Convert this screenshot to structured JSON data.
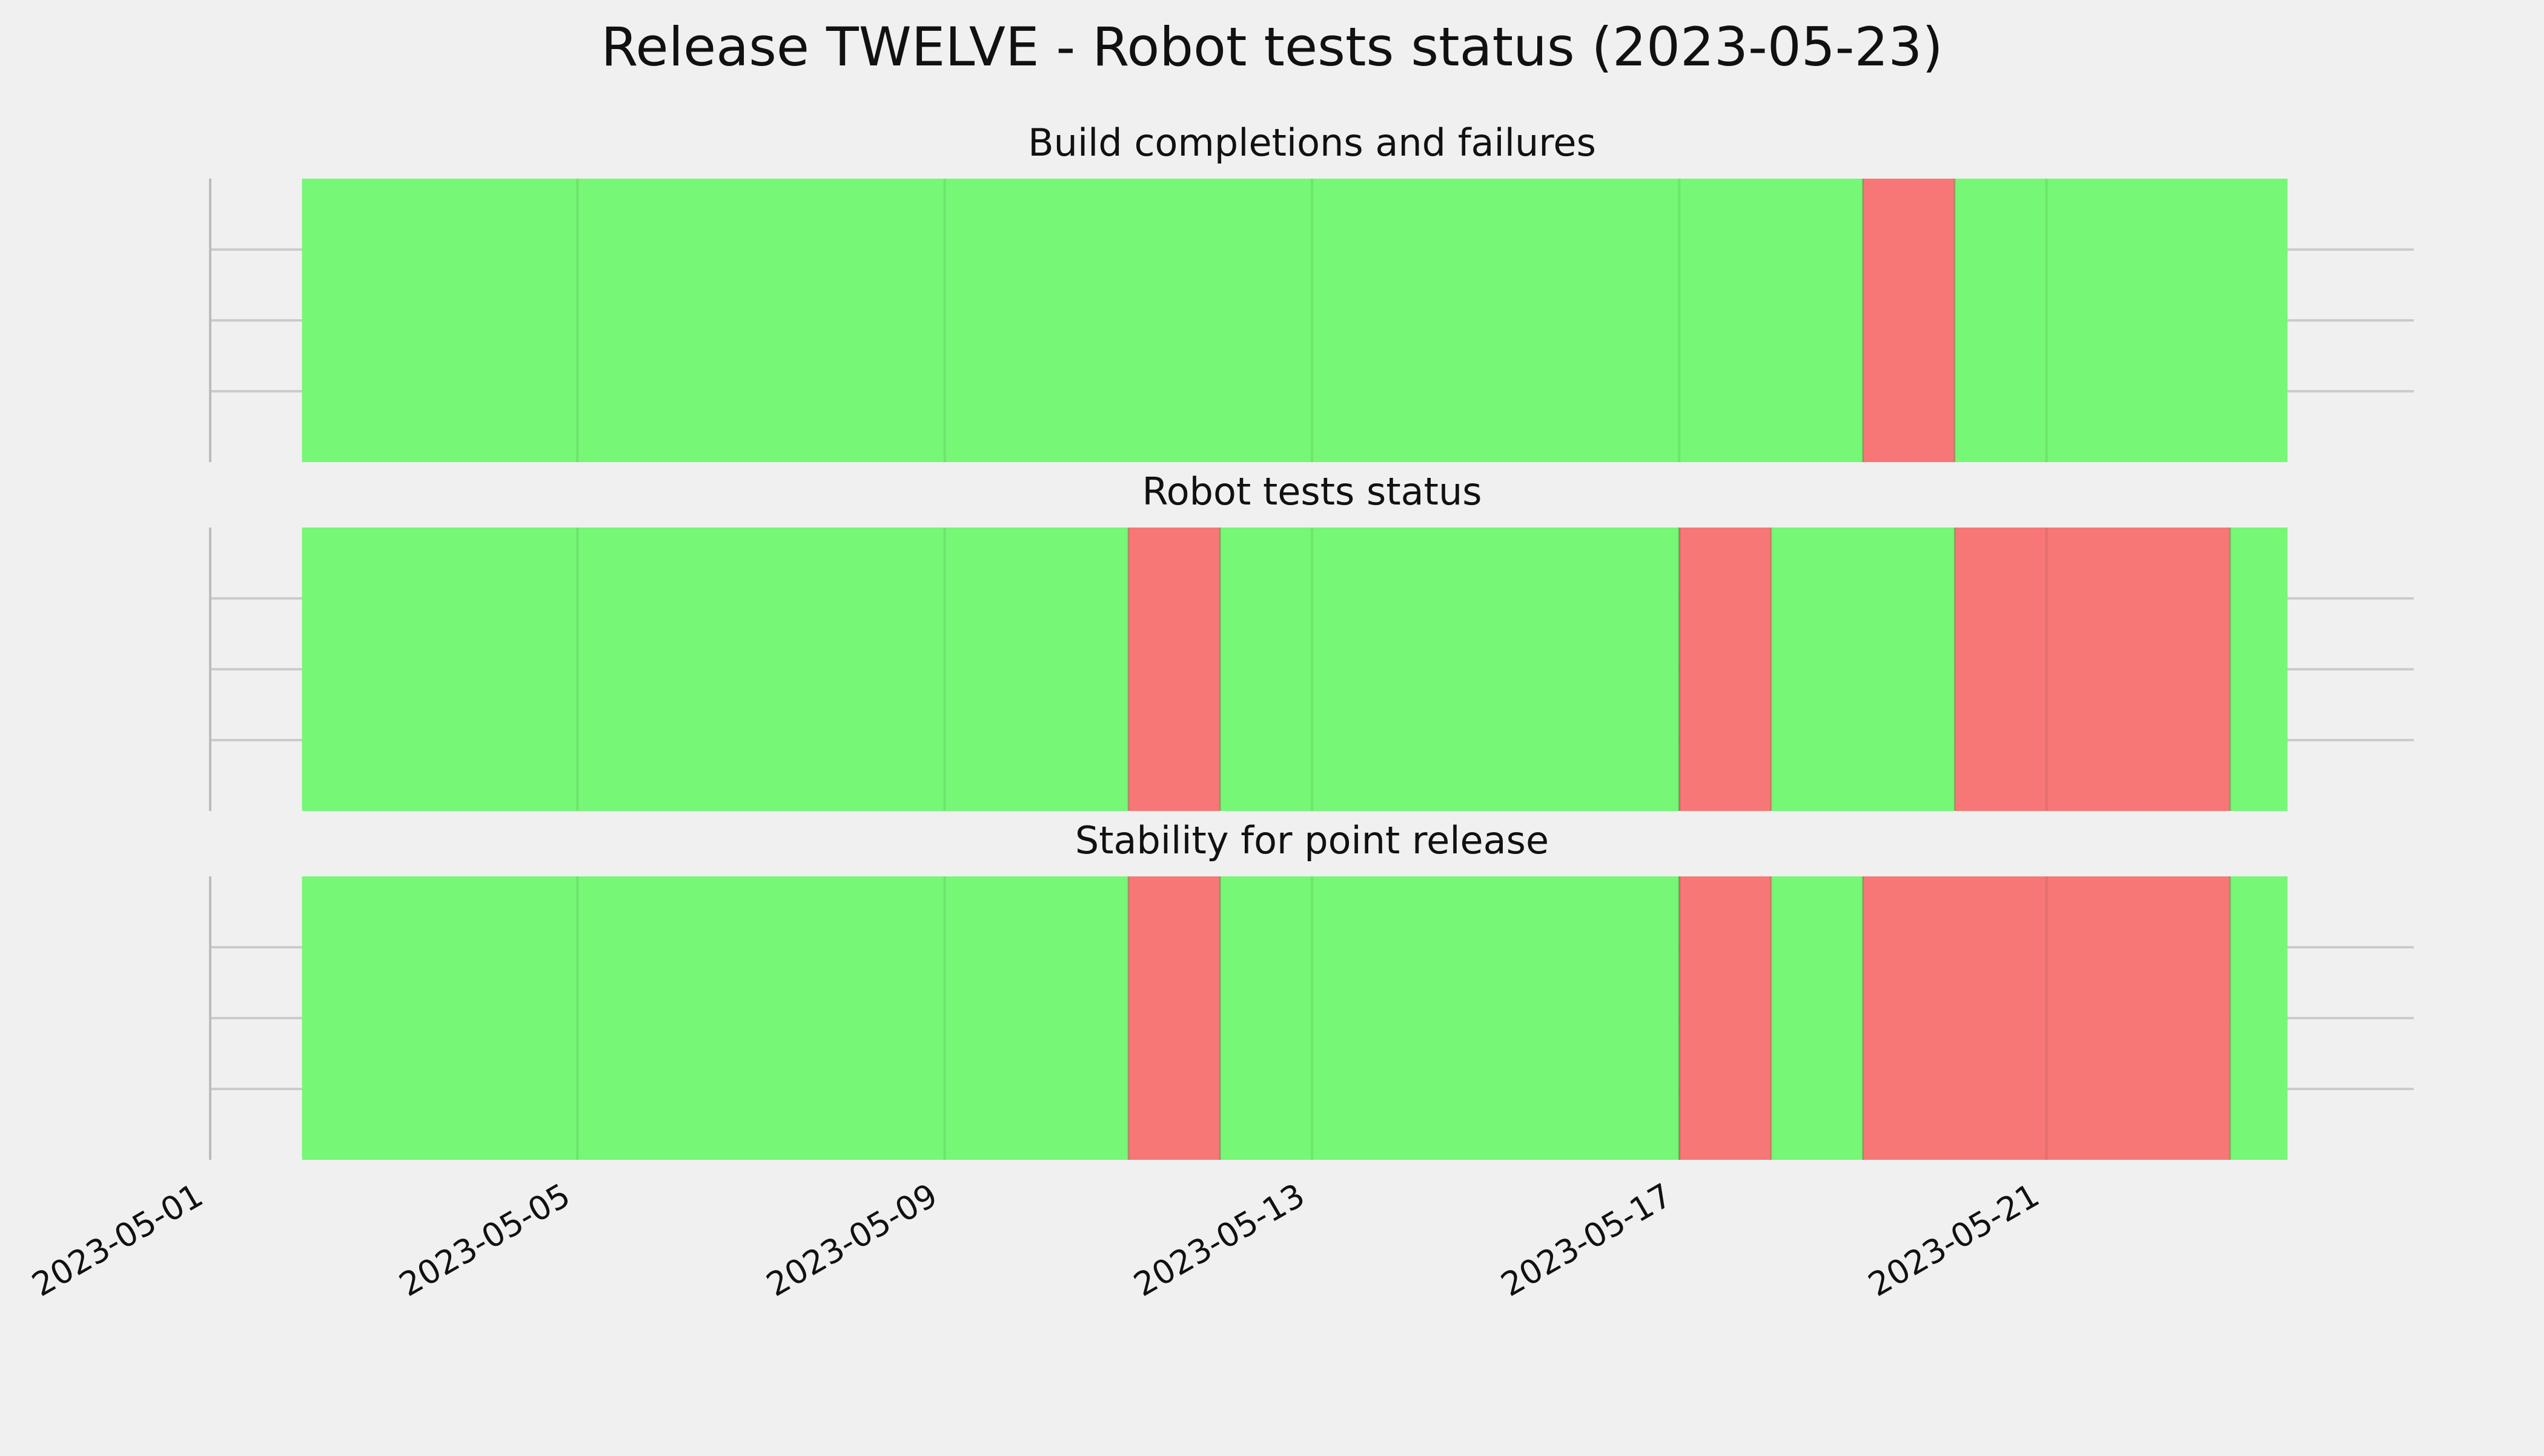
{
  "chart_data": {
    "type": "timeline",
    "title": "Release TWELVE - Robot tests status (2023-05-23)",
    "x_axis": {
      "type": "date",
      "range": [
        "2023-05-01",
        "2023-05-25"
      ],
      "tick_labels": [
        "2023-05-01",
        "2023-05-05",
        "2023-05-09",
        "2023-05-13",
        "2023-05-17",
        "2023-05-21"
      ]
    },
    "grid": true,
    "legend": "none",
    "colors": {
      "pass": "#76f776",
      "fail": "#f77777",
      "background": "#f0f0f0",
      "grid": "#cbcbcb"
    },
    "panels": [
      {
        "subtitle": "Build completions and failures",
        "segments": [
          {
            "start": "2023-05-02",
            "end": "2023-05-19",
            "status": "pass"
          },
          {
            "start": "2023-05-19",
            "end": "2023-05-20",
            "status": "fail"
          },
          {
            "start": "2023-05-20",
            "end": "2023-05-23 15:00",
            "status": "pass"
          }
        ]
      },
      {
        "subtitle": "Robot tests status",
        "segments": [
          {
            "start": "2023-05-02",
            "end": "2023-05-11",
            "status": "pass"
          },
          {
            "start": "2023-05-11",
            "end": "2023-05-12",
            "status": "fail"
          },
          {
            "start": "2023-05-12",
            "end": "2023-05-17",
            "status": "pass"
          },
          {
            "start": "2023-05-17",
            "end": "2023-05-18",
            "status": "fail"
          },
          {
            "start": "2023-05-18",
            "end": "2023-05-20",
            "status": "pass"
          },
          {
            "start": "2023-05-20",
            "end": "2023-05-23",
            "status": "fail"
          },
          {
            "start": "2023-05-23",
            "end": "2023-05-23 15:00",
            "status": "pass"
          }
        ]
      },
      {
        "subtitle": "Stability for point release",
        "segments": [
          {
            "start": "2023-05-02",
            "end": "2023-05-11",
            "status": "pass"
          },
          {
            "start": "2023-05-11",
            "end": "2023-05-12",
            "status": "fail"
          },
          {
            "start": "2023-05-12",
            "end": "2023-05-17",
            "status": "pass"
          },
          {
            "start": "2023-05-17",
            "end": "2023-05-18",
            "status": "fail"
          },
          {
            "start": "2023-05-18",
            "end": "2023-05-19",
            "status": "pass"
          },
          {
            "start": "2023-05-19",
            "end": "2023-05-23",
            "status": "fail"
          },
          {
            "start": "2023-05-23",
            "end": "2023-05-23 15:00",
            "status": "pass"
          }
        ]
      }
    ]
  }
}
